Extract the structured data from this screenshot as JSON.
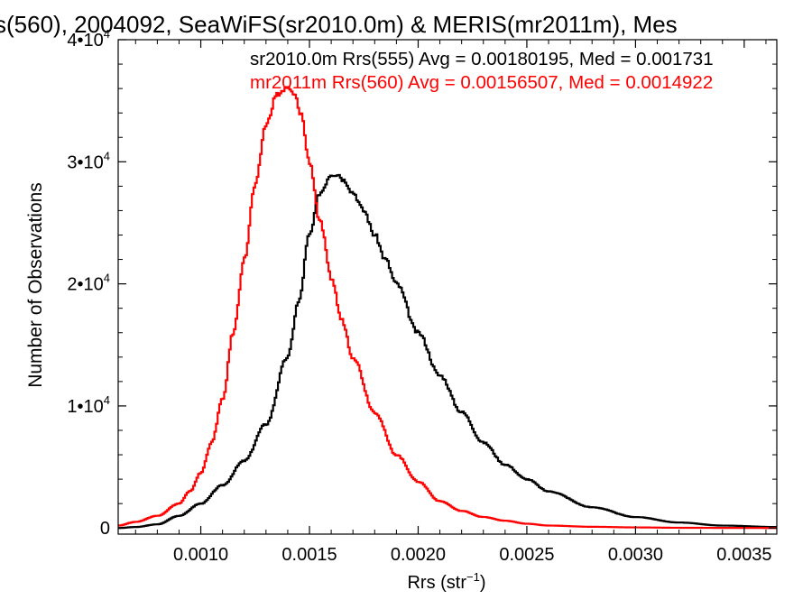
{
  "chart_data": {
    "type": "line",
    "title": "s(560), 2004092, SeaWiFS(sr2010.0m) & MERIS(mr2011m), Mes",
    "xlabel": "Rrs (str",
    "xlabel_sup": "−1",
    "xlabel_close": ")",
    "ylabel": "Number of Observations",
    "xlim": [
      0.00062,
      0.00365
    ],
    "ylim": [
      -500,
      40000
    ],
    "legend_placement": "top",
    "xticks": [
      {
        "value": 0.001,
        "label": "0.0010"
      },
      {
        "value": 0.0015,
        "label": "0.0015"
      },
      {
        "value": 0.002,
        "label": "0.0020"
      },
      {
        "value": 0.0025,
        "label": "0.0025"
      },
      {
        "value": 0.003,
        "label": "0.0030"
      },
      {
        "value": 0.0035,
        "label": "0.0035"
      }
    ],
    "yticks": [
      {
        "value": 0,
        "label": "0",
        "exp": ""
      },
      {
        "value": 10000,
        "label": "1•10",
        "exp": "4"
      },
      {
        "value": 20000,
        "label": "2•10",
        "exp": "4"
      },
      {
        "value": 30000,
        "label": "3•10",
        "exp": "4"
      },
      {
        "value": 40000,
        "label": "4•10",
        "exp": "4"
      }
    ],
    "series": [
      {
        "name": "sr2010.0m Rrs(555) Avg = 0.00180195, Med = 0.001731",
        "color": "#000000",
        "x": [
          0.00062,
          0.0007,
          0.0008,
          0.0009,
          0.001,
          0.0011,
          0.0012,
          0.0013,
          0.0014,
          0.00145,
          0.0015,
          0.00155,
          0.0016,
          0.00163,
          0.00166,
          0.0017,
          0.00175,
          0.0018,
          0.00185,
          0.0019,
          0.002,
          0.0021,
          0.0022,
          0.0023,
          0.0024,
          0.0025,
          0.0026,
          0.0028,
          0.003,
          0.0032,
          0.0034,
          0.00365
        ],
        "y": [
          0,
          80,
          300,
          1000,
          2000,
          3500,
          5500,
          8500,
          14000,
          18500,
          24000,
          27500,
          29000,
          29000,
          28500,
          27500,
          26000,
          24000,
          22000,
          20000,
          16000,
          12500,
          9500,
          7000,
          5200,
          4000,
          3000,
          1700,
          900,
          450,
          200,
          80
        ]
      },
      {
        "name": "mr2011m Rrs(560) Avg = 0.00156507, Med = 0.0014922",
        "color": "#ff0000",
        "x": [
          0.00062,
          0.0007,
          0.0008,
          0.0009,
          0.00095,
          0.001,
          0.00105,
          0.0011,
          0.00115,
          0.0012,
          0.00125,
          0.0013,
          0.00135,
          0.0014,
          0.00143,
          0.00146,
          0.0015,
          0.00155,
          0.0016,
          0.00165,
          0.0017,
          0.0018,
          0.0019,
          0.002,
          0.0021,
          0.0022,
          0.0023,
          0.0024,
          0.0025,
          0.0026,
          0.0028,
          0.003,
          0.0032,
          0.0034,
          0.00365
        ],
        "y": [
          200,
          500,
          1000,
          2000,
          3000,
          4500,
          7000,
          10500,
          16000,
          22000,
          28000,
          33000,
          35500,
          36000,
          35500,
          34000,
          30000,
          25000,
          20500,
          17000,
          14000,
          9500,
          6000,
          3800,
          2200,
          1400,
          900,
          600,
          350,
          200,
          100,
          50,
          20,
          10,
          0
        ]
      }
    ]
  }
}
